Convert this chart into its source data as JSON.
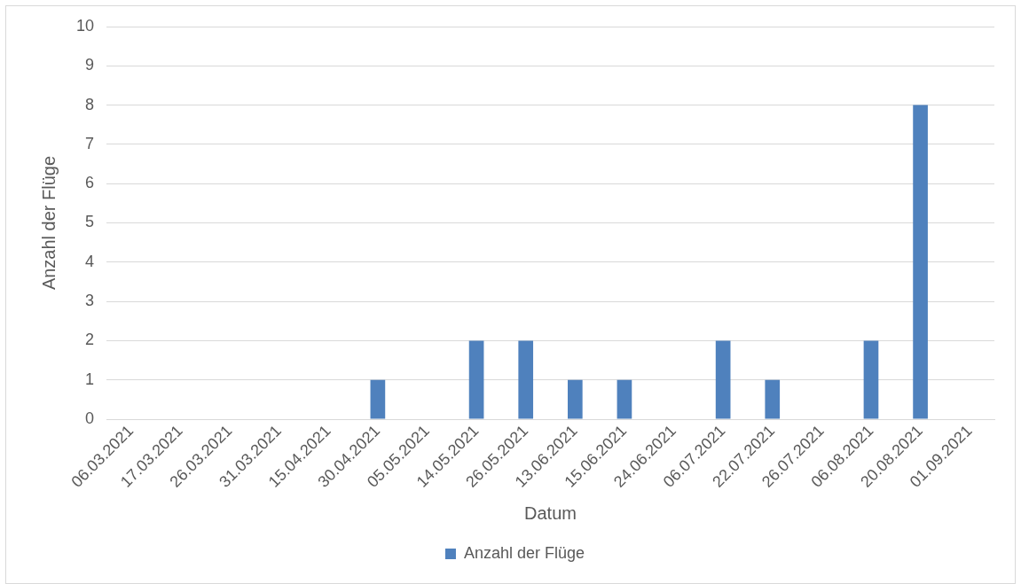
{
  "chart_data": {
    "type": "bar",
    "xlabel": "Datum",
    "ylabel": "Anzahl der Flüge",
    "categories": [
      "06.03.2021",
      "17.03.2021",
      "26.03.2021",
      "31.03.2021",
      "15.04.2021",
      "30.04.2021",
      "05.05.2021",
      "14.05.2021",
      "26.05.2021",
      "13.06.2021",
      "15.06.2021",
      "24.06.2021",
      "06.07.2021",
      "22.07.2021",
      "26.07.2021",
      "06.08.2021",
      "20.08.2021",
      "01.09.2021"
    ],
    "series": [
      {
        "name": "Anzahl der Flüge",
        "color": "#4f81bd",
        "values": [
          0,
          0,
          0,
          0,
          0,
          1,
          0,
          2,
          2,
          1,
          1,
          0,
          2,
          1,
          0,
          2,
          8,
          0
        ]
      }
    ],
    "ylim": [
      0,
      10
    ],
    "yticks": [
      0,
      1,
      2,
      3,
      4,
      5,
      6,
      7,
      8,
      9,
      10
    ],
    "grid": "y",
    "legend": "bottom"
  }
}
